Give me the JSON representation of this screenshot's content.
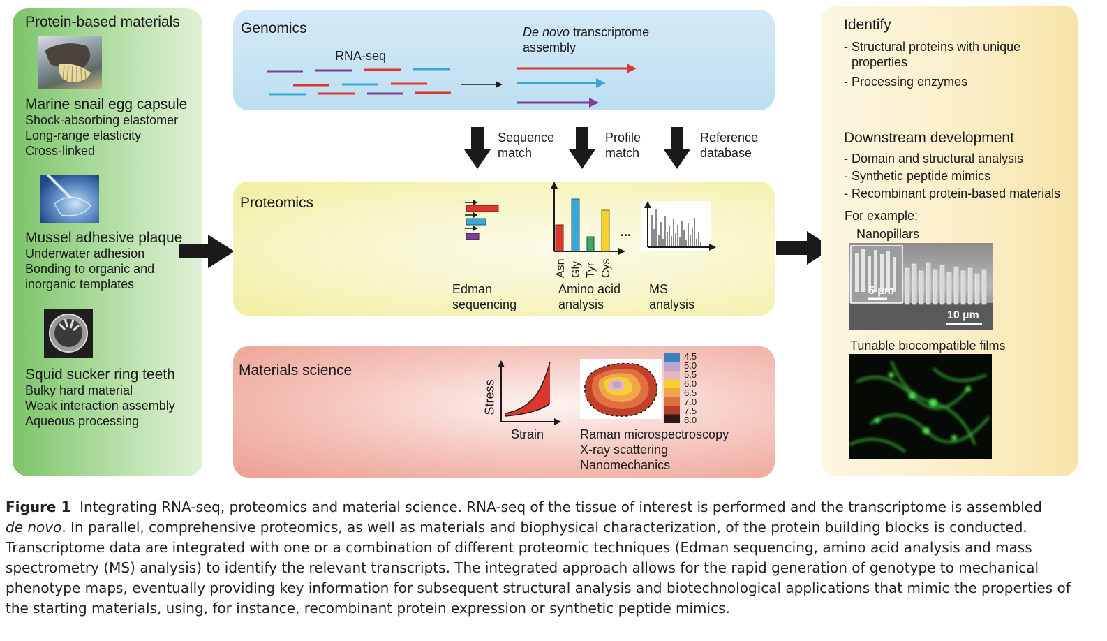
{
  "left_panel": {
    "title": "Protein-based materials",
    "items": [
      {
        "heading": "Marine snail egg capsule",
        "lines": [
          "Shock-absorbing elastomer",
          "Long-range elasticity",
          "Cross-linked"
        ]
      },
      {
        "heading": "Mussel adhesive plaque",
        "lines": [
          "Underwater adhesion",
          "Bonding to organic and",
          "inorganic templates"
        ]
      },
      {
        "heading": "Squid sucker ring teeth",
        "lines": [
          "Bulky hard material",
          "Weak interaction assembly",
          "Aqueous processing"
        ]
      }
    ]
  },
  "genomics": {
    "title": "Genomics",
    "rnaseq_label": "RNA-seq",
    "denovo_italic": "De novo",
    "denovo_rest": " transcriptome",
    "denovo_line2": "assembly"
  },
  "arrows": [
    {
      "line1": "Sequence",
      "line2": "match"
    },
    {
      "line1": "Profile",
      "line2": "match"
    },
    {
      "line1": "Reference",
      "line2": "database"
    }
  ],
  "proteomics": {
    "title": "Proteomics",
    "edman": [
      "Edman",
      "sequencing"
    ],
    "amino": [
      "Amino acid",
      "analysis"
    ],
    "ms": [
      "MS",
      "analysis"
    ],
    "amino_ticks": [
      "Asn",
      "Gly",
      "Tyr",
      "Cys"
    ],
    "ellipsis": "..."
  },
  "materials": {
    "title": "Materials science",
    "stress": "Stress",
    "strain": "Strain",
    "methods": [
      "Raman microspectroscopy",
      "X-ray scattering",
      "Nanomechanics"
    ],
    "legend_values": [
      "4.5",
      "5.0",
      "5.5",
      "6.0",
      "6.5",
      "7.0",
      "7.5",
      "8.0"
    ],
    "legend_colors": [
      "#3a7fc1",
      "#b9a6cf",
      "#e8b4c4",
      "#f5d12f",
      "#f1a64a",
      "#e07040",
      "#b04028",
      "#2a1a12"
    ]
  },
  "right_panel": {
    "identify_title": "Identify",
    "identify_items": [
      "- Structural proteins with unique",
      "properties",
      "- Processing enzymes"
    ],
    "downstream_title": "Downstream development",
    "downstream_items": [
      "- Domain and structural analysis",
      "- Synthetic peptide mimics",
      "- Recombinant protein-based materials"
    ],
    "for_example": "For example:",
    "nanopillars": "Nanopillars",
    "scale_small": "5 µm",
    "scale_large": "10 µm",
    "films": "Tunable biocompatible films"
  },
  "caption": {
    "figure_label": "Figure 1",
    "line1": "Integrating RNA-seq, proteomics and material science. RNA-seq of the tissue of interest is performed and the transcriptome is assembled",
    "line2_italic": "de novo",
    "line2_rest": ". In parallel, comprehensive proteomics, as well as materials and biophysical characterization, of the protein building blocks is conducted.",
    "line3": "Transcriptome data are integrated with one or a combination of different proteomic techniques (Edman sequencing, amino acid analysis and mass",
    "line4": "spectrometry (MS) analysis) to identify the relevant transcripts. The integrated approach allows for the rapid generation of genotype to mechanical",
    "line5": "phenotype maps, eventually providing key information for subsequent structural analysis and biotechnological applications that mimic the properties of",
    "line6": "the starting materials, using, for instance, recombinant protein expression or synthetic peptide mimics."
  }
}
